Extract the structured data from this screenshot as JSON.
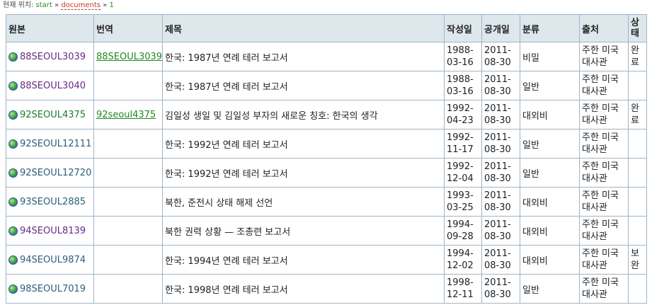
{
  "breadcrumb": {
    "prefix": "현재 위치:",
    "items": [
      "start",
      "documents",
      "1"
    ],
    "separator": "»"
  },
  "table": {
    "headers": [
      "원본",
      "번역",
      "제목",
      "작성일",
      "공개일",
      "분류",
      "출처",
      "상태"
    ],
    "rows": [
      {
        "orig": "88SEOUL3039",
        "trans": "88SEOUL3039",
        "title": "한국: 1987년 연례 테러 보고서",
        "created": "1988-\n03-16",
        "released": "2011-\n08-30",
        "class": "비밀",
        "source": "주한 미국 대사관",
        "status": "완료"
      },
      {
        "orig": "88SEOUL3040",
        "trans": "",
        "title": "한국: 1987년 연례 테러 보고서",
        "created": "1988-\n03-16",
        "released": "2011-\n08-30",
        "class": "일반",
        "source": "주한 미국 대사관",
        "status": ""
      },
      {
        "orig": "92SEOUL4375",
        "trans": "92seoul4375",
        "title": "김일성 생일 및 김일성 부자의 새로운 칭호: 한국의 생각",
        "created": "1992-\n04-23",
        "released": "2011-\n08-30",
        "class": "대외비",
        "source": "주한 미국 대사관",
        "status": "완료"
      },
      {
        "orig": "92SEOUL12111",
        "trans": "",
        "title": "한국: 1992년 연례 테러 보고서",
        "created": "1992-\n11-17",
        "released": "2011-\n08-30",
        "class": "일반",
        "source": "주한 미국 대사관",
        "status": ""
      },
      {
        "orig": "92SEOUL12720",
        "trans": "",
        "title": "한국: 1992년 연례 테러 보고서",
        "created": "1992-\n12-04",
        "released": "2011-\n08-30",
        "class": "일반",
        "source": "주한 미국 대사관",
        "status": ""
      },
      {
        "orig": "93SEOUL2885",
        "trans": "",
        "title": "북한, 준전시 상태 해제 선언",
        "created": "1993-\n03-25",
        "released": "2011-\n08-30",
        "class": "대외비",
        "source": "주한 미국 대사관",
        "status": ""
      },
      {
        "orig": "94SEOUL8139",
        "trans": "",
        "title": "북한 권력 상황 — 조총련 보고서",
        "created": "1994-\n09-28",
        "released": "2011-\n08-30",
        "class": "대외비",
        "source": "주한 미국 대사관",
        "status": ""
      },
      {
        "orig": "94SEOUL9874",
        "trans": "",
        "title": "한국: 1994년 연례 테러 보고서",
        "created": "1994-\n12-02",
        "released": "2011-\n08-30",
        "class": "대외비",
        "source": "주한 미국 대사관",
        "status": "보완"
      },
      {
        "orig": "98SEOUL7019",
        "trans": "",
        "title": "한국: 1998년 연례 테러 보고서",
        "created": "1998-\n12-11",
        "released": "2011-\n08-30",
        "class": "일반",
        "source": "주한 미국 대사관",
        "status": ""
      }
    ]
  }
}
